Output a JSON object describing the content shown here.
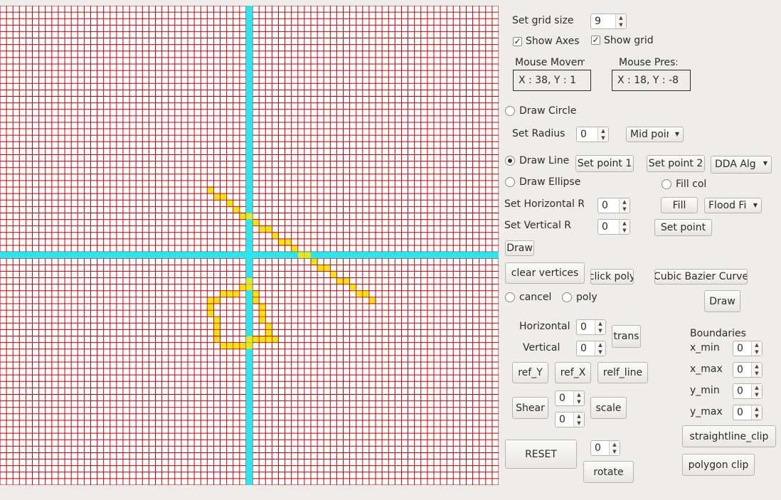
{
  "grid": {
    "cols": 77,
    "rows": 74,
    "axis_col": 38,
    "axis_row": 38,
    "colors": {
      "line": "#c20000",
      "axis": "#26e8ee",
      "pixel": "#f7e400",
      "background": "#ffffff"
    },
    "pixels": [
      [
        32,
        28
      ],
      [
        33,
        29
      ],
      [
        34,
        29
      ],
      [
        35,
        30
      ],
      [
        36,
        31
      ],
      [
        37,
        32
      ],
      [
        38,
        32
      ],
      [
        39,
        33
      ],
      [
        40,
        34
      ],
      [
        41,
        34
      ],
      [
        42,
        35
      ],
      [
        43,
        36
      ],
      [
        44,
        36
      ],
      [
        45,
        37
      ],
      [
        46,
        38
      ],
      [
        47,
        38
      ],
      [
        48,
        39
      ],
      [
        49,
        40
      ],
      [
        50,
        40
      ],
      [
        51,
        41
      ],
      [
        52,
        42
      ],
      [
        53,
        42
      ],
      [
        54,
        43
      ],
      [
        55,
        44
      ],
      [
        56,
        44
      ],
      [
        57,
        45
      ],
      [
        38,
        42
      ],
      [
        38,
        43
      ],
      [
        37,
        43
      ],
      [
        36,
        44
      ],
      [
        35,
        44
      ],
      [
        34,
        44
      ],
      [
        32,
        45
      ],
      [
        33,
        45
      ],
      [
        39,
        44
      ],
      [
        39,
        45
      ],
      [
        32,
        46
      ],
      [
        40,
        46
      ],
      [
        32,
        47
      ],
      [
        40,
        47
      ],
      [
        33,
        48
      ],
      [
        40,
        48
      ],
      [
        33,
        49
      ],
      [
        41,
        49
      ],
      [
        33,
        50
      ],
      [
        41,
        50
      ],
      [
        33,
        51
      ],
      [
        41,
        51
      ],
      [
        34,
        52
      ],
      [
        35,
        52
      ],
      [
        36,
        52
      ],
      [
        37,
        52
      ],
      [
        38,
        51
      ],
      [
        39,
        51
      ],
      [
        40,
        51
      ],
      [
        41,
        51
      ],
      [
        42,
        51
      ],
      [
        38,
        52
      ]
    ]
  },
  "grid_size": {
    "label": "Set grid size",
    "value": "9"
  },
  "show_axes": {
    "label": "Show Axes",
    "checked": true
  },
  "show_grid": {
    "label": "Show grid",
    "checked": true
  },
  "mouse_movement": {
    "label": "Mouse Movem",
    "value": "X : 38, Y : 1"
  },
  "mouse_pressed": {
    "label": "Mouse Pres:",
    "value": "X : 18, Y : -8"
  },
  "circle": {
    "label": "Draw Circle",
    "radius_label": "Set Radius",
    "radius_value": "0",
    "algorithm": "Mid poir"
  },
  "line": {
    "label": "Draw Line",
    "set_point1": "Set point 1",
    "set_point2": "Set point 2",
    "algorithm": "DDA Alg"
  },
  "ellipse": {
    "label": "Draw Ellipse",
    "horizontal_label": "Set Horizontal R",
    "horizontal_value": "0",
    "vertical_label": "Set Vertical R",
    "vertical_value": "0",
    "draw": "Draw"
  },
  "fill": {
    "label": "Fill col",
    "fill_button": "Fill",
    "algorithm": "Flood Fi",
    "set_point": "Set point"
  },
  "polygon": {
    "clear_vertices": "clear vertices",
    "click_poly": "click poly",
    "cancel": "cancel",
    "poly": "poly"
  },
  "bezier": {
    "label": "Cubic Bazier Curve",
    "draw": "Draw"
  },
  "translate": {
    "horizontal_label": "Horizontal",
    "horizontal_value": "0",
    "vertical_label": "Vertical",
    "vertical_value": "0",
    "button": "trans"
  },
  "reflect": {
    "ref_y": "ref_Y",
    "ref_x": "ref_X",
    "relf_line": "relf_line"
  },
  "shear": {
    "button": "Shear",
    "value1": "0",
    "value2": "0"
  },
  "scale": {
    "button": "scale"
  },
  "rotate": {
    "value": "0",
    "button": "rotate"
  },
  "reset": {
    "button": "RESET"
  },
  "boundaries": {
    "title": "Boundaries",
    "x_min_label": "x_min",
    "x_min_value": "0",
    "x_max_label": "x_max",
    "x_max_value": "0",
    "y_min_label": "y_min",
    "y_min_value": "0",
    "y_max_label": "y_max",
    "y_max_value": "0"
  },
  "clip": {
    "straightline": "straightline_clip",
    "polygon": "polygon clip"
  }
}
